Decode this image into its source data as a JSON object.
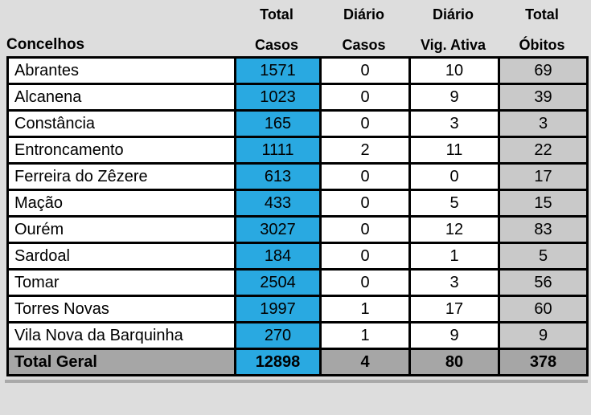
{
  "colors": {
    "casos_highlight": "#29a9e1",
    "obitos_cell": "#c9c9c9",
    "total_row": "#a6a6a6",
    "header_bg": "#dddddd",
    "cell_bg": "#ffffff",
    "border": "#000000",
    "text": "#000000"
  },
  "chart_data": {
    "type": "table",
    "title": "",
    "columns": [
      {
        "line1": "",
        "line2": "Concelhos"
      },
      {
        "line1": "Total",
        "line2": "Casos"
      },
      {
        "line1": "Diário",
        "line2": "Casos"
      },
      {
        "line1": "Diário",
        "line2": "Vig. Ativa"
      },
      {
        "line1": "Total",
        "line2": "Óbitos"
      }
    ],
    "rows": [
      {
        "concelho": "Abrantes",
        "total_casos": "1571",
        "diario_casos": "0",
        "diario_vig_ativa": "10",
        "total_obitos": "69"
      },
      {
        "concelho": "Alcanena",
        "total_casos": "1023",
        "diario_casos": "0",
        "diario_vig_ativa": "9",
        "total_obitos": "39"
      },
      {
        "concelho": "Constância",
        "total_casos": "165",
        "diario_casos": "0",
        "diario_vig_ativa": "3",
        "total_obitos": "3"
      },
      {
        "concelho": "Entroncamento",
        "total_casos": "1111",
        "diario_casos": "2",
        "diario_vig_ativa": "11",
        "total_obitos": "22"
      },
      {
        "concelho": "Ferreira do Zêzere",
        "total_casos": "613",
        "diario_casos": "0",
        "diario_vig_ativa": "0",
        "total_obitos": "17"
      },
      {
        "concelho": "Mação",
        "total_casos": "433",
        "diario_casos": "0",
        "diario_vig_ativa": "5",
        "total_obitos": "15"
      },
      {
        "concelho": "Ourém",
        "total_casos": "3027",
        "diario_casos": "0",
        "diario_vig_ativa": "12",
        "total_obitos": "83"
      },
      {
        "concelho": "Sardoal",
        "total_casos": "184",
        "diario_casos": "0",
        "diario_vig_ativa": "1",
        "total_obitos": "5"
      },
      {
        "concelho": "Tomar",
        "total_casos": "2504",
        "diario_casos": "0",
        "diario_vig_ativa": "3",
        "total_obitos": "56"
      },
      {
        "concelho": "Torres Novas",
        "total_casos": "1997",
        "diario_casos": "1",
        "diario_vig_ativa": "17",
        "total_obitos": "60"
      },
      {
        "concelho": "Vila Nova da Barquinha",
        "total_casos": "270",
        "diario_casos": "1",
        "diario_vig_ativa": "9",
        "total_obitos": "9"
      }
    ],
    "total": {
      "concelho": "Total Geral",
      "total_casos": "12898",
      "diario_casos": "4",
      "diario_vig_ativa": "80",
      "total_obitos": "378"
    }
  }
}
